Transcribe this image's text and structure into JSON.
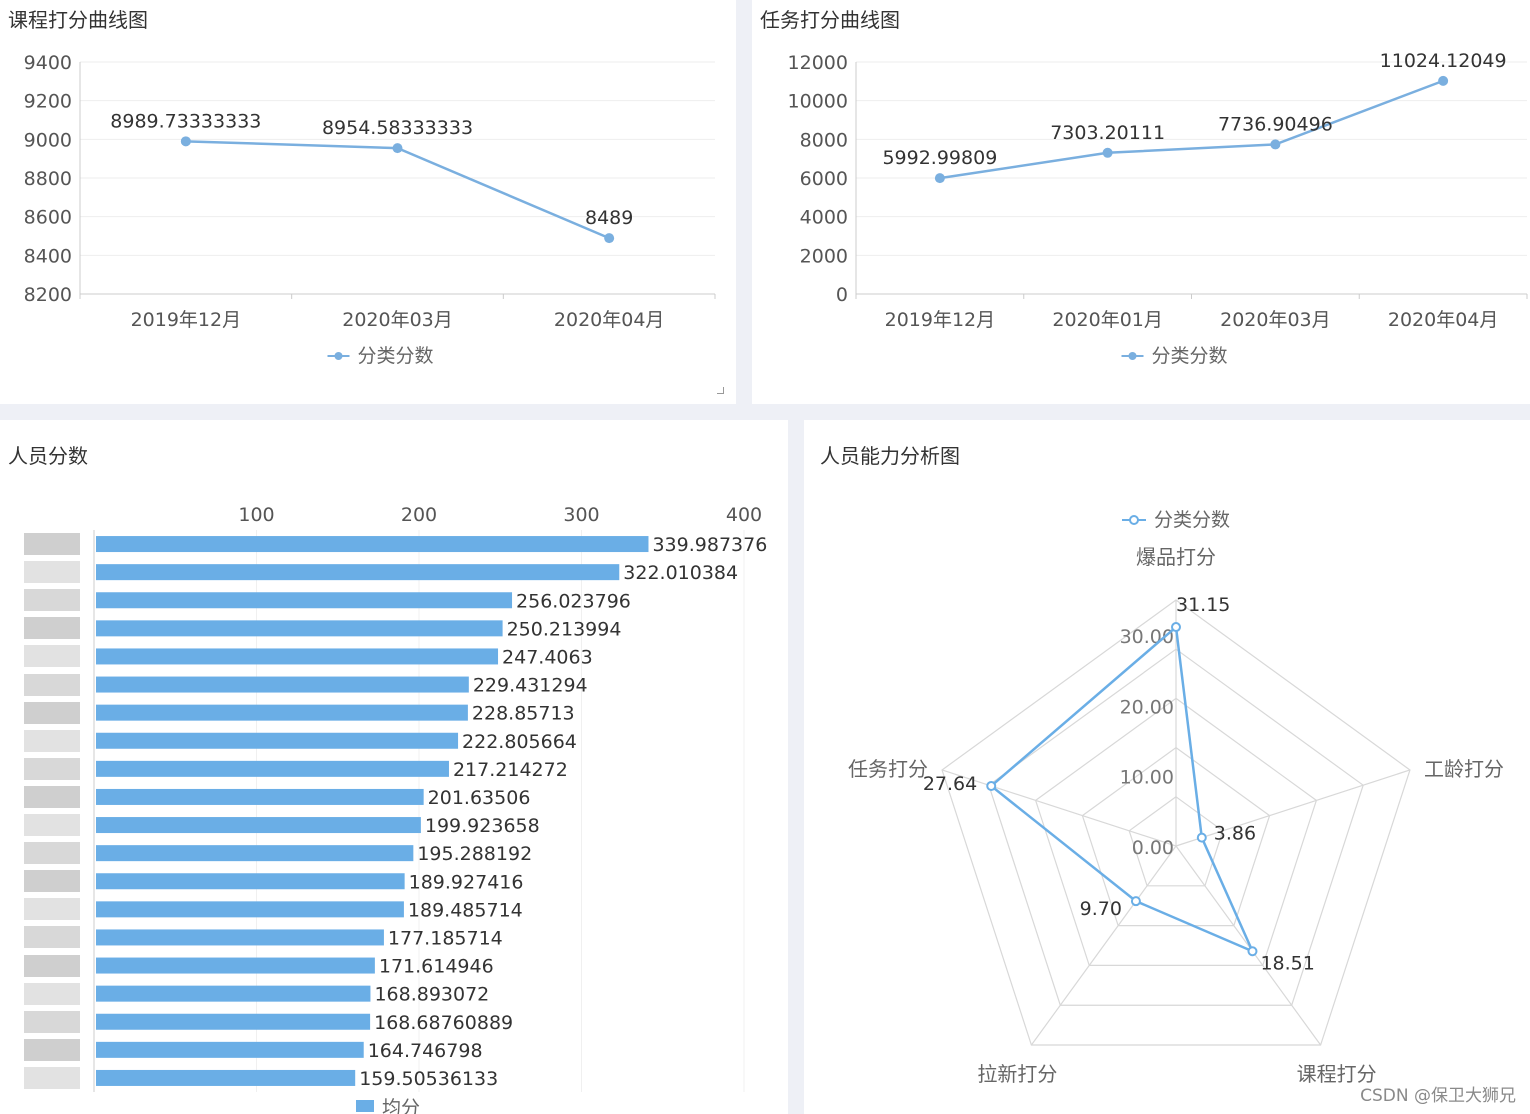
{
  "chart_data": [
    {
      "type": "line",
      "title": "课程打分曲线图",
      "categories": [
        "2019年12月",
        "2020年03月",
        "2020年04月"
      ],
      "series": [
        {
          "name": "分类分数",
          "values": [
            8989.73333333,
            8954.58333333,
            8489
          ],
          "labels": [
            "8989.73333333",
            "8954.58333333",
            "8489"
          ]
        }
      ],
      "ylim": [
        8200,
        9400
      ],
      "yticks": [
        9400,
        9200,
        9000,
        8800,
        8600,
        8400,
        8200
      ],
      "legend": "bottom",
      "color": "#7aafdf"
    },
    {
      "type": "line",
      "title": "任务打分曲线图",
      "categories": [
        "2019年12月",
        "2020年01月",
        "2020年03月",
        "2020年04月"
      ],
      "series": [
        {
          "name": "分类分数",
          "values": [
            5992.99809,
            7303.20111,
            7736.90496,
            11024.12049
          ],
          "labels": [
            "5992.99809",
            "7303.20111",
            "7736.90496",
            "11024.12049"
          ]
        }
      ],
      "ylim": [
        0,
        12000
      ],
      "yticks": [
        12000,
        10000,
        8000,
        6000,
        4000,
        2000,
        0
      ],
      "legend": "bottom",
      "color": "#7aafdf"
    },
    {
      "type": "bar",
      "orientation": "horizontal",
      "title": "人员分数",
      "xticks": [
        100,
        200,
        300,
        400
      ],
      "xlim": [
        0,
        400
      ],
      "values": [
        339.987376,
        322.010384,
        256.023796,
        250.213994,
        247.4063,
        229.431294,
        228.85713,
        222.805664,
        217.214272,
        201.63506,
        199.923658,
        195.288192,
        189.927416,
        189.485714,
        177.185714,
        171.614946,
        168.893072,
        168.68760889,
        164.746798,
        159.50536133
      ],
      "labels": [
        "339.987376",
        "322.010384",
        "256.023796",
        "250.213994",
        "247.4063",
        "229.431294",
        "228.85713",
        "222.805664",
        "217.214272",
        "201.63506",
        "199.923658",
        "195.288192",
        "189.927416",
        "189.485714",
        "177.185714",
        "171.614946",
        "168.893072",
        "168.68760889",
        "164.746798",
        "159.50536133"
      ],
      "series": [
        {
          "name": "均分"
        }
      ],
      "legend": "bottom",
      "color": "#6aaee6"
    },
    {
      "type": "radar",
      "title": "人员能力分析图",
      "indicators": [
        "爆品打分",
        "工龄打分",
        "课程打分",
        "拉新打分",
        "任务打分"
      ],
      "max": 35,
      "ring_labels": [
        "30.00",
        "20.00",
        "10.00",
        "0.00"
      ],
      "ring_values": [
        30,
        20,
        10,
        0
      ],
      "series": [
        {
          "name": "分类分数",
          "values": [
            31.15,
            3.86,
            18.51,
            9.7,
            27.64
          ],
          "labels": [
            "31.15",
            "3.86",
            "18.51",
            "9.70",
            "27.64"
          ]
        }
      ],
      "legend": "top",
      "color": "#6aaee6"
    }
  ],
  "watermark": "CSDN @保卫大狮兄"
}
